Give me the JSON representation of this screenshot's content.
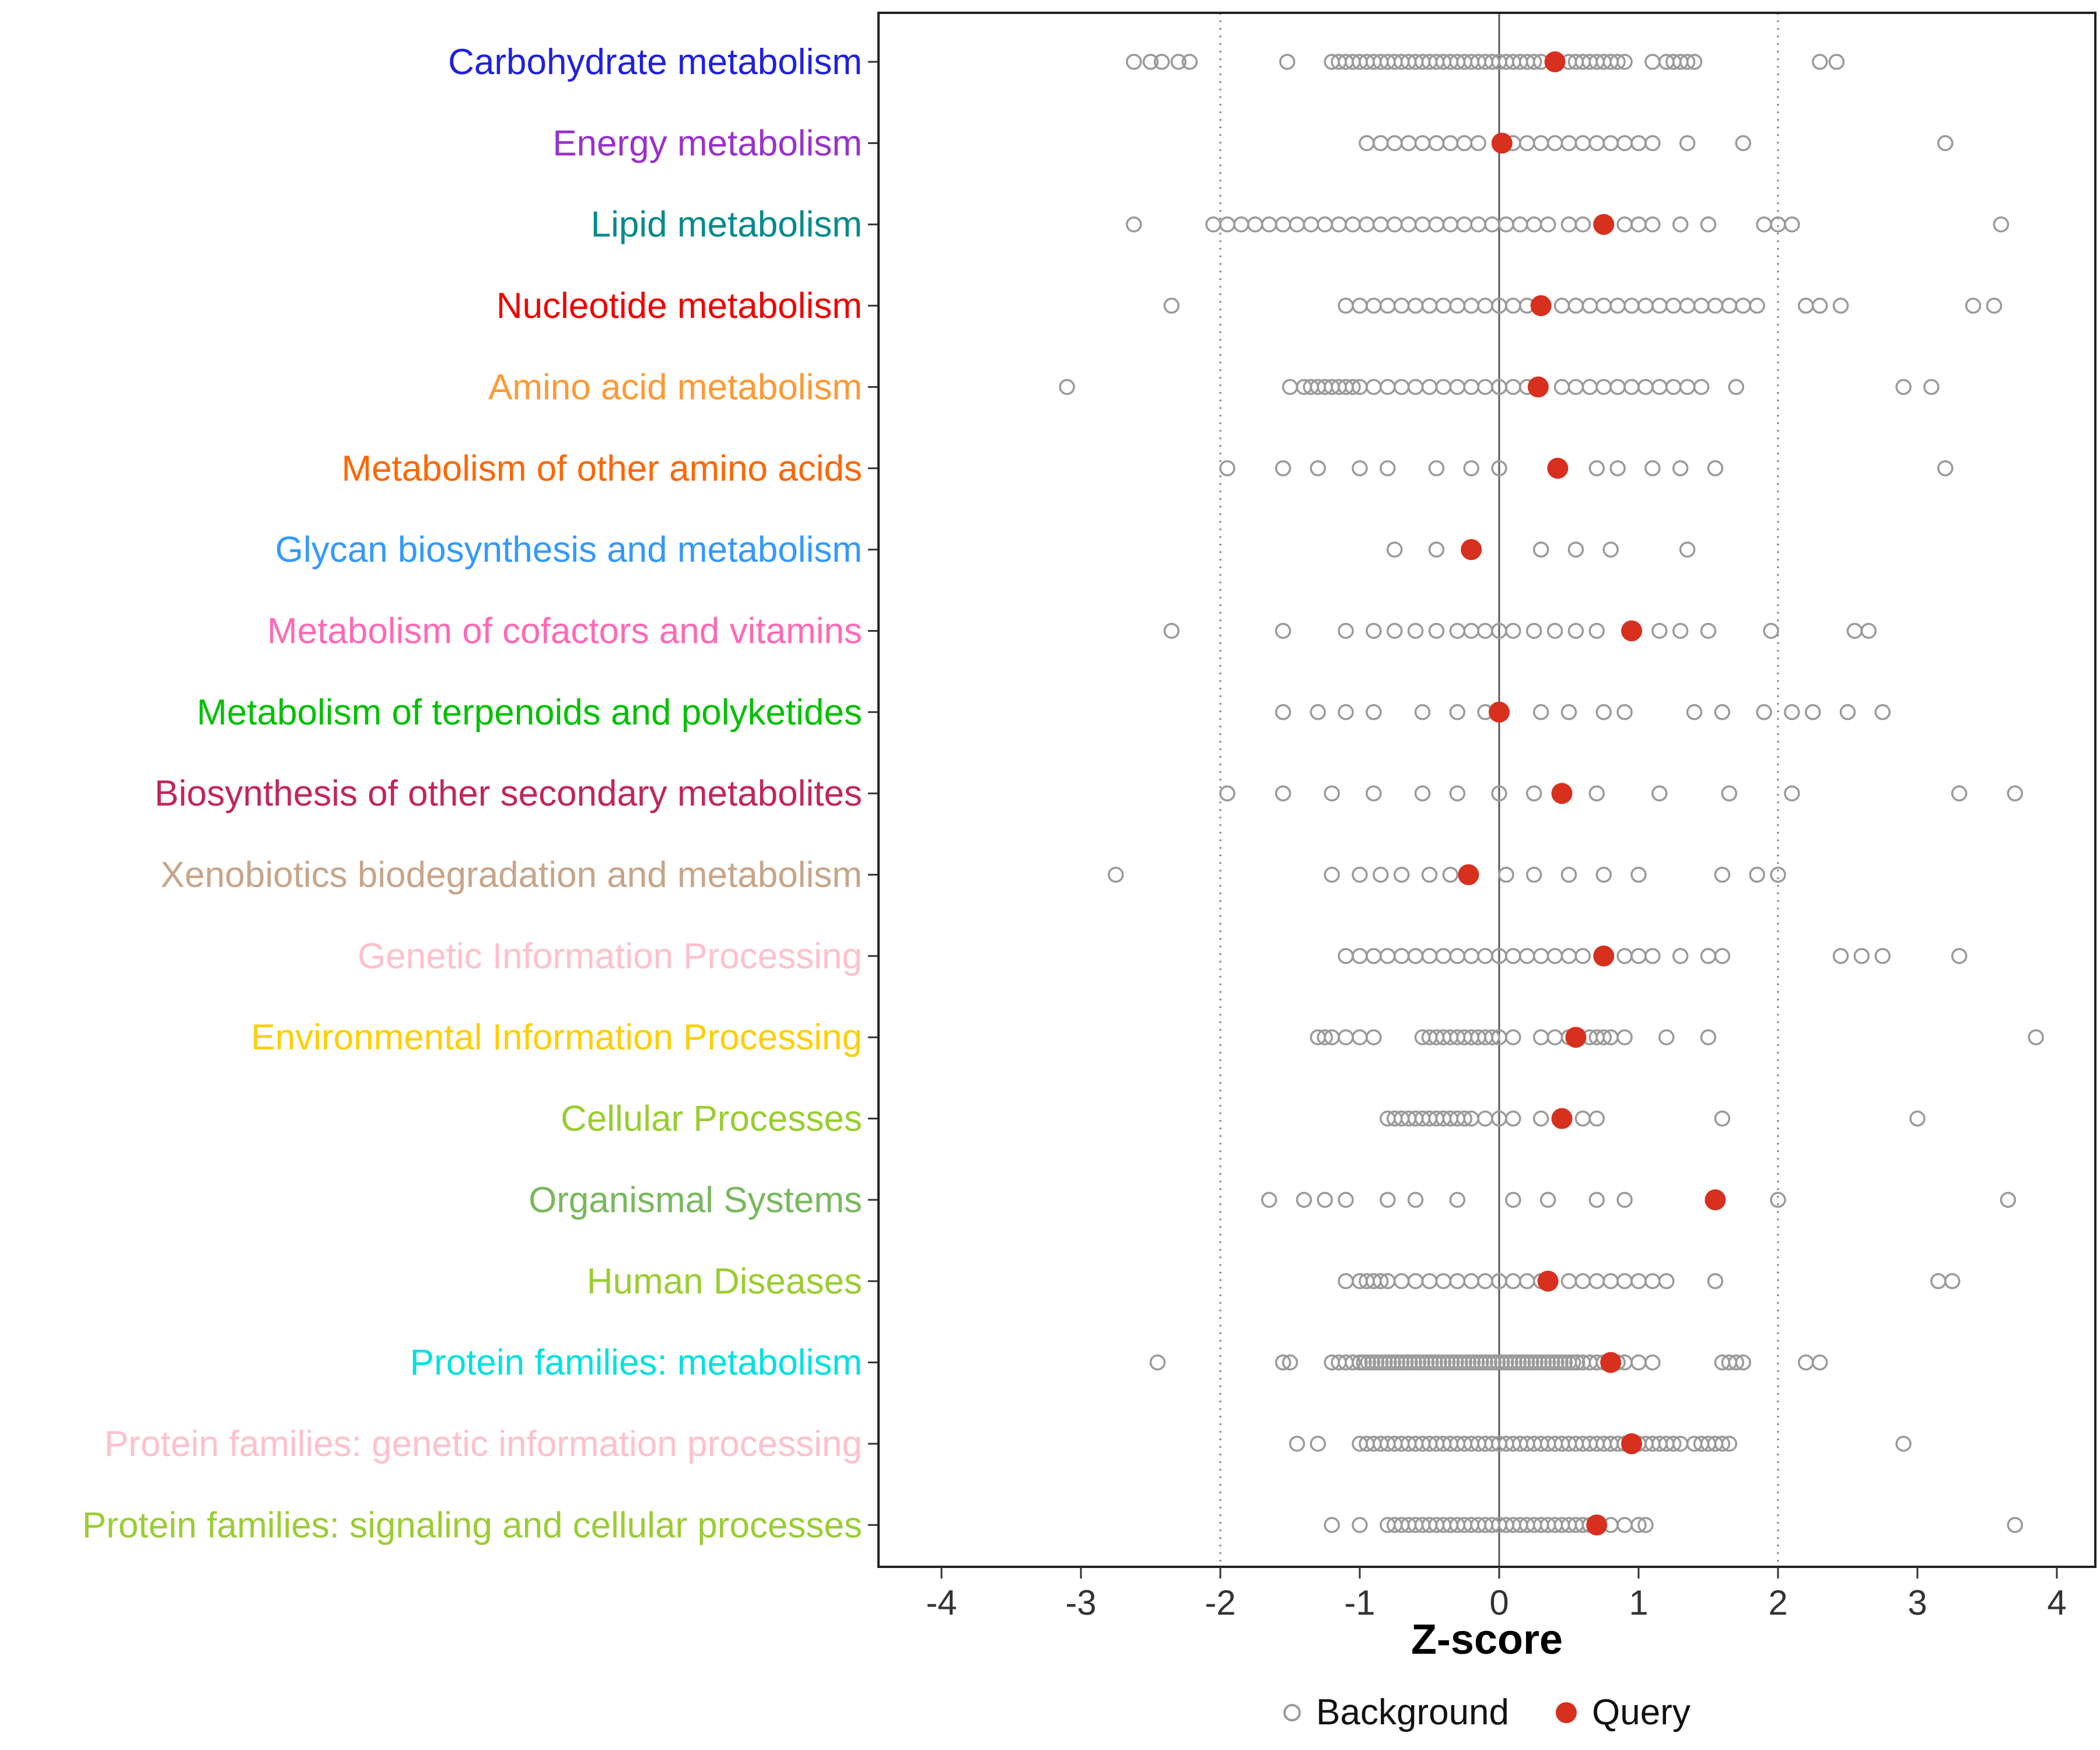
{
  "chart_data": {
    "type": "scatter",
    "title": "",
    "xlabel": "Z-score",
    "x_ticks": [
      -4,
      -3,
      -2,
      -1,
      0,
      1,
      2,
      3,
      4
    ],
    "xlim": [
      -4.45,
      4.28
    ],
    "grid": "off",
    "legend_position": "bottom",
    "reference_lines": {
      "solid": [
        0
      ],
      "dotted": [
        -2,
        2
      ]
    },
    "legend": {
      "background_label": "Background",
      "query_label": "Query"
    },
    "colors": {
      "query": "#D7301F",
      "background_stroke": "#9A9A9A",
      "axis_text": "#333333",
      "grid_dotted": "#808080",
      "zero_line": "#595959",
      "panel_border": "#222222"
    },
    "rows": [
      {
        "label": "Carbohydrate metabolism",
        "color": "#2020DF",
        "query": 0.4,
        "background": [
          -2.62,
          -2.5,
          -2.42,
          -2.3,
          -2.22,
          -1.52,
          -1.2,
          -1.15,
          -1.1,
          -1.05,
          -1.0,
          -0.95,
          -0.9,
          -0.85,
          -0.8,
          -0.75,
          -0.7,
          -0.65,
          -0.6,
          -0.55,
          -0.5,
          -0.45,
          -0.4,
          -0.35,
          -0.3,
          -0.25,
          -0.2,
          -0.15,
          -0.1,
          -0.05,
          0.0,
          0.05,
          0.1,
          0.15,
          0.2,
          0.25,
          0.3,
          0.5,
          0.55,
          0.6,
          0.65,
          0.7,
          0.75,
          0.8,
          0.85,
          0.9,
          1.1,
          1.2,
          1.25,
          1.3,
          1.35,
          1.4,
          2.3,
          2.42
        ]
      },
      {
        "label": "Energy metabolism",
        "color": "#9932CC",
        "query": 0.02,
        "background": [
          -0.95,
          -0.85,
          -0.75,
          -0.65,
          -0.55,
          -0.45,
          -0.35,
          -0.25,
          -0.15,
          0.1,
          0.2,
          0.3,
          0.4,
          0.5,
          0.6,
          0.7,
          0.8,
          0.9,
          1.0,
          1.1,
          1.35,
          1.75,
          3.2
        ]
      },
      {
        "label": "Lipid metabolism",
        "color": "#008B8B",
        "query": 0.75,
        "background": [
          -2.62,
          -2.05,
          -1.95,
          -1.85,
          -1.75,
          -1.65,
          -1.55,
          -1.45,
          -1.35,
          -1.25,
          -1.15,
          -1.05,
          -0.95,
          -0.85,
          -0.75,
          -0.65,
          -0.55,
          -0.45,
          -0.35,
          -0.25,
          -0.15,
          -0.05,
          0.05,
          0.15,
          0.25,
          0.35,
          0.5,
          0.6,
          0.9,
          1.0,
          1.1,
          1.3,
          1.5,
          1.9,
          2.0,
          2.1,
          3.6
        ]
      },
      {
        "label": "Nucleotide metabolism",
        "color": "#EE0000",
        "query": 0.3,
        "background": [
          -2.35,
          -1.1,
          -1.0,
          -0.9,
          -0.8,
          -0.7,
          -0.6,
          -0.5,
          -0.4,
          -0.3,
          -0.2,
          -0.1,
          0.0,
          0.1,
          0.2,
          0.45,
          0.55,
          0.65,
          0.75,
          0.85,
          0.95,
          1.05,
          1.15,
          1.25,
          1.35,
          1.45,
          1.55,
          1.65,
          1.75,
          1.85,
          2.2,
          2.3,
          2.45,
          3.4,
          3.55
        ]
      },
      {
        "label": "Amino acid metabolism",
        "color": "#FF9933",
        "query": 0.28,
        "background": [
          -3.1,
          -1.5,
          -1.4,
          -1.35,
          -1.3,
          -1.25,
          -1.2,
          -1.15,
          -1.1,
          -1.05,
          -1.0,
          -0.9,
          -0.8,
          -0.7,
          -0.6,
          -0.5,
          -0.4,
          -0.3,
          -0.2,
          -0.1,
          0.0,
          0.1,
          0.2,
          0.45,
          0.55,
          0.65,
          0.75,
          0.85,
          0.95,
          1.05,
          1.15,
          1.25,
          1.35,
          1.45,
          1.7,
          2.9,
          3.1
        ]
      },
      {
        "label": "Metabolism of other amino acids",
        "color": "#FF6600",
        "query": 0.42,
        "background": [
          -1.95,
          -1.55,
          -1.3,
          -1.0,
          -0.8,
          -0.45,
          -0.2,
          0.0,
          0.7,
          0.85,
          1.1,
          1.3,
          1.55,
          3.2
        ]
      },
      {
        "label": "Glycan biosynthesis and metabolism",
        "color": "#3399FF",
        "query": -0.2,
        "background": [
          -0.75,
          -0.45,
          0.3,
          0.55,
          0.8,
          1.35
        ]
      },
      {
        "label": "Metabolism of cofactors and vitamins",
        "color": "#FF69B4",
        "query": 0.95,
        "background": [
          -2.35,
          -1.55,
          -1.1,
          -0.9,
          -0.75,
          -0.6,
          -0.45,
          -0.3,
          -0.2,
          -0.1,
          0.0,
          0.1,
          0.25,
          0.4,
          0.55,
          0.7,
          1.15,
          1.3,
          1.5,
          1.95,
          2.55,
          2.65
        ]
      },
      {
        "label": "Metabolism of terpenoids and polyketides",
        "color": "#00C000",
        "query": 0.0,
        "background": [
          -1.55,
          -1.3,
          -1.1,
          -0.9,
          -0.55,
          -0.3,
          -0.1,
          0.3,
          0.5,
          0.75,
          0.9,
          1.4,
          1.6,
          1.9,
          2.1,
          2.25,
          2.5,
          2.75
        ]
      },
      {
        "label": "Biosynthesis of other secondary metabolites",
        "color": "#C2255C",
        "query": 0.45,
        "background": [
          -1.95,
          -1.55,
          -1.2,
          -0.9,
          -0.55,
          -0.3,
          0.0,
          0.25,
          0.7,
          1.15,
          1.65,
          2.1,
          3.3,
          3.7
        ]
      },
      {
        "label": "Xenobiotics biodegradation and metabolism",
        "color": "#C7A589",
        "query": -0.22,
        "background": [
          -2.75,
          -1.2,
          -1.0,
          -0.85,
          -0.7,
          -0.5,
          -0.35,
          0.05,
          0.25,
          0.5,
          0.75,
          1.0,
          1.6,
          1.85,
          2.0
        ]
      },
      {
        "label": "Genetic Information Processing",
        "color": "#FFC0CB",
        "query": 0.75,
        "background": [
          -1.1,
          -1.0,
          -0.9,
          -0.8,
          -0.7,
          -0.6,
          -0.5,
          -0.4,
          -0.3,
          -0.2,
          -0.1,
          0.0,
          0.1,
          0.2,
          0.3,
          0.4,
          0.5,
          0.6,
          0.9,
          1.0,
          1.1,
          1.3,
          1.5,
          1.6,
          2.45,
          2.6,
          2.75,
          3.3
        ]
      },
      {
        "label": "Environmental Information Processing",
        "color": "#FFCE00",
        "query": 0.55,
        "background": [
          -1.3,
          -1.25,
          -1.2,
          -1.1,
          -1.0,
          -0.9,
          -0.55,
          -0.5,
          -0.45,
          -0.4,
          -0.35,
          -0.3,
          -0.25,
          -0.2,
          -0.15,
          -0.1,
          -0.05,
          0.0,
          0.1,
          0.3,
          0.4,
          0.5,
          0.65,
          0.7,
          0.75,
          0.8,
          0.9,
          1.2,
          1.5,
          3.85
        ]
      },
      {
        "label": "Cellular Processes",
        "color": "#9ACD32",
        "query": 0.45,
        "background": [
          -0.8,
          -0.75,
          -0.7,
          -0.65,
          -0.6,
          -0.55,
          -0.5,
          -0.45,
          -0.4,
          -0.35,
          -0.3,
          -0.25,
          -0.2,
          -0.1,
          0.0,
          0.1,
          0.3,
          0.6,
          0.7,
          1.6,
          3.0
        ]
      },
      {
        "label": "Organismal Systems",
        "color": "#77B95C",
        "query": 1.55,
        "background": [
          -1.65,
          -1.4,
          -1.25,
          -1.1,
          -0.8,
          -0.6,
          -0.3,
          0.1,
          0.35,
          0.7,
          0.9,
          2.0,
          3.65
        ]
      },
      {
        "label": "Human Diseases",
        "color": "#9ACD32",
        "query": 0.35,
        "background": [
          -1.1,
          -1.0,
          -0.95,
          -0.9,
          -0.85,
          -0.8,
          -0.7,
          -0.6,
          -0.5,
          -0.4,
          -0.3,
          -0.2,
          -0.1,
          0.0,
          0.1,
          0.2,
          0.3,
          0.5,
          0.6,
          0.7,
          0.8,
          0.9,
          1.0,
          1.1,
          1.2,
          1.55,
          3.15,
          3.25
        ]
      },
      {
        "label": "Protein families: metabolism",
        "color": "#00E0E0",
        "query": 0.8,
        "background": [
          -2.45,
          -1.55,
          -1.5,
          -1.2,
          -1.15,
          -1.1,
          -1.05,
          -1.0,
          -0.97,
          -0.94,
          -0.91,
          -0.88,
          -0.85,
          -0.82,
          -0.79,
          -0.76,
          -0.73,
          -0.7,
          -0.67,
          -0.64,
          -0.61,
          -0.58,
          -0.55,
          -0.52,
          -0.49,
          -0.46,
          -0.43,
          -0.4,
          -0.37,
          -0.34,
          -0.31,
          -0.28,
          -0.25,
          -0.22,
          -0.19,
          -0.16,
          -0.13,
          -0.1,
          -0.07,
          -0.04,
          -0.01,
          0.02,
          0.05,
          0.08,
          0.11,
          0.14,
          0.17,
          0.2,
          0.23,
          0.26,
          0.29,
          0.32,
          0.35,
          0.38,
          0.41,
          0.44,
          0.47,
          0.5,
          0.53,
          0.56,
          0.6,
          0.65,
          0.7,
          0.75,
          0.85,
          0.9,
          1.0,
          1.1,
          1.6,
          1.65,
          1.7,
          1.75,
          2.2,
          2.3
        ]
      },
      {
        "label": "Protein families: genetic information processing",
        "color": "#FFC0CB",
        "query": 0.95,
        "background": [
          -1.45,
          -1.3,
          -1.0,
          -0.95,
          -0.9,
          -0.85,
          -0.8,
          -0.75,
          -0.7,
          -0.65,
          -0.6,
          -0.55,
          -0.5,
          -0.45,
          -0.4,
          -0.35,
          -0.3,
          -0.25,
          -0.2,
          -0.15,
          -0.1,
          -0.05,
          0.0,
          0.05,
          0.1,
          0.15,
          0.2,
          0.25,
          0.3,
          0.35,
          0.4,
          0.45,
          0.5,
          0.55,
          0.6,
          0.65,
          0.7,
          0.75,
          0.8,
          0.85,
          0.9,
          1.0,
          1.05,
          1.1,
          1.15,
          1.2,
          1.25,
          1.3,
          1.4,
          1.45,
          1.5,
          1.55,
          1.6,
          1.65,
          2.9
        ]
      },
      {
        "label": "Protein families: signaling and cellular processes",
        "color": "#9ACD32",
        "query": 0.7,
        "background": [
          -1.2,
          -1.0,
          -0.8,
          -0.75,
          -0.7,
          -0.65,
          -0.6,
          -0.55,
          -0.5,
          -0.45,
          -0.4,
          -0.35,
          -0.3,
          -0.25,
          -0.2,
          -0.15,
          -0.1,
          -0.05,
          0.0,
          0.05,
          0.1,
          0.15,
          0.2,
          0.25,
          0.3,
          0.35,
          0.4,
          0.45,
          0.5,
          0.55,
          0.6,
          0.65,
          0.8,
          0.9,
          1.0,
          1.05,
          3.7
        ]
      }
    ]
  }
}
